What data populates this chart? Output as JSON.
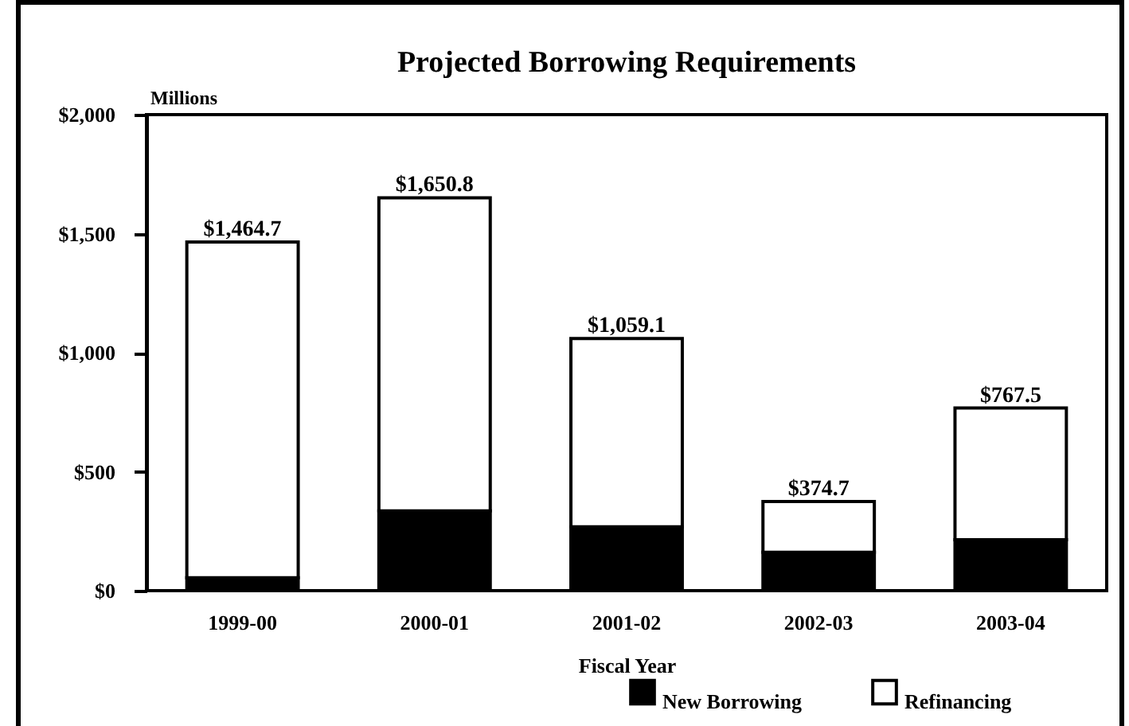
{
  "chart_data": {
    "type": "bar",
    "title": "Projected Borrowing Requirements",
    "xlabel": "Fiscal Year",
    "ylabel": "Millions",
    "categories": [
      "1999-00",
      "2000-01",
      "2001-02",
      "2002-03",
      "2003-04"
    ],
    "stacked": true,
    "series": [
      {
        "name": "New Borrowing",
        "color": "#000000",
        "values": [
          54,
          335,
          268,
          161,
          214
        ]
      },
      {
        "name": "Refinancing",
        "color": "#ffffff",
        "values": [
          1410.7,
          1315.8,
          791.1,
          213.7,
          553.5
        ]
      }
    ],
    "totals": [
      "$1,464.7",
      "$1,650.8",
      "$1,059.1",
      "$374.7",
      "$767.5"
    ],
    "ylim": [
      0,
      2000
    ],
    "yticks": [
      {
        "value": 0,
        "label": "$0"
      },
      {
        "value": 500,
        "label": "$500"
      },
      {
        "value": 1000,
        "label": "$1,000"
      },
      {
        "value": 1500,
        "label": "$1,500"
      },
      {
        "value": 2000,
        "label": "$2,000"
      }
    ],
    "grid": false,
    "legend": "bottom"
  }
}
